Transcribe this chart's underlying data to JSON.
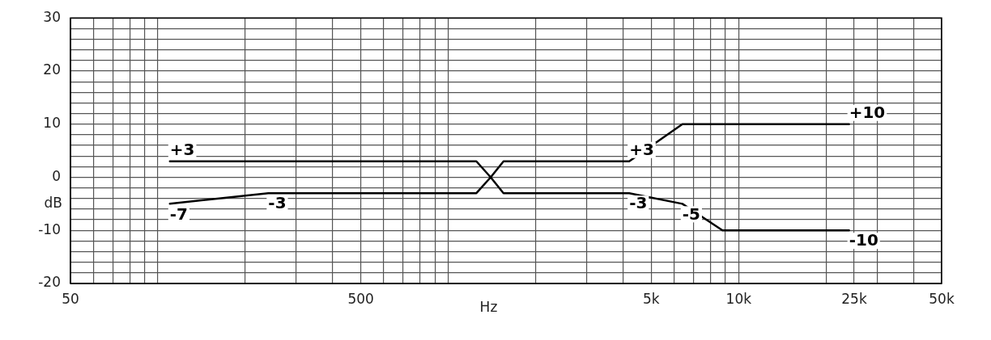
{
  "chart_data": {
    "type": "line",
    "xlabel": "Hz",
    "ylabel": "dB",
    "log": "x",
    "grid": true,
    "legend": false,
    "marker": "none",
    "line_style": "solid",
    "xlim": [
      50,
      50000
    ],
    "ylim": [
      -20,
      30
    ],
    "xticks": [
      50,
      {
        "value": 60,
        "label": null
      },
      {
        "value": 70,
        "label": null
      },
      {
        "value": 80,
        "label": null
      },
      {
        "value": 90,
        "label": null
      },
      {
        "value": 100,
        "label": null
      },
      {
        "value": 200,
        "label": null
      },
      {
        "value": 300,
        "label": null
      },
      {
        "value": 400,
        "label": null
      },
      500,
      {
        "value": 600,
        "label": null
      },
      {
        "value": 700,
        "label": null
      },
      {
        "value": 800,
        "label": null
      },
      {
        "value": 900,
        "label": null
      },
      {
        "value": 1000,
        "label": null
      },
      {
        "value": 2000,
        "label": null
      },
      {
        "value": 3000,
        "label": null
      },
      {
        "value": 4000,
        "label": null
      },
      {
        "value": 5000,
        "label": "5k"
      },
      {
        "value": 6000,
        "label": null
      },
      {
        "value": 7000,
        "label": null
      },
      {
        "value": 8000,
        "label": null
      },
      {
        "value": 9000,
        "label": null
      },
      {
        "value": 10000,
        "label": "10k"
      },
      {
        "value": 20000,
        "label": null
      },
      {
        "value": 25000,
        "label": "25k"
      },
      {
        "value": 30000,
        "label": null
      },
      {
        "value": 40000,
        "label": null
      },
      {
        "value": 50000,
        "label": "50k"
      }
    ],
    "yticks": [
      -20,
      {
        "value": -18,
        "label": null
      },
      {
        "value": -16,
        "label": null
      },
      {
        "value": -14,
        "label": null
      },
      {
        "value": -12,
        "label": null
      },
      -10,
      {
        "value": -8,
        "label": null
      },
      {
        "value": -6,
        "label": null
      },
      {
        "value": -4,
        "label": null
      },
      {
        "value": -2,
        "label": null
      },
      0,
      {
        "value": 2,
        "label": null
      },
      {
        "value": 4,
        "label": null
      },
      {
        "value": 6,
        "label": null
      },
      {
        "value": 8,
        "label": null
      },
      10,
      {
        "value": 12,
        "label": null
      },
      {
        "value": 14,
        "label": null
      },
      {
        "value": 16,
        "label": null
      },
      {
        "value": 18,
        "label": null
      },
      20,
      {
        "value": 22,
        "label": null
      },
      {
        "value": 24,
        "label": null
      },
      {
        "value": 26,
        "label": null
      },
      {
        "value": 28,
        "label": null
      },
      30
    ],
    "series": [
      {
        "color": "#000000",
        "x": [
          110,
          1250,
          1400,
          1550,
          4200,
          6400,
          8800,
          24000
        ],
        "values": [
          3,
          3,
          0,
          -3,
          -3,
          -5,
          -10,
          -10
        ]
      },
      {
        "color": "#000000",
        "x": [
          110,
          240,
          1250,
          1400,
          1550,
          4200,
          6400,
          24000
        ],
        "values": [
          -5,
          -3,
          -3,
          0,
          3,
          3,
          10,
          10
        ]
      }
    ],
    "annotations": [
      {
        "text": "+3",
        "x": 110,
        "y": 3
      },
      {
        "text": "-7",
        "x": 110,
        "y": -5
      },
      {
        "text": "-3",
        "x": 240,
        "y": -3
      },
      {
        "text": "+3",
        "x": 4200,
        "y": 3
      },
      {
        "text": "-3",
        "x": 4200,
        "y": -3
      },
      {
        "text": "-5",
        "x": 6400,
        "y": -5
      },
      {
        "text": "+10",
        "x": 24000,
        "y": 10
      },
      {
        "text": "-10",
        "x": 24000,
        "y": -10
      }
    ]
  }
}
